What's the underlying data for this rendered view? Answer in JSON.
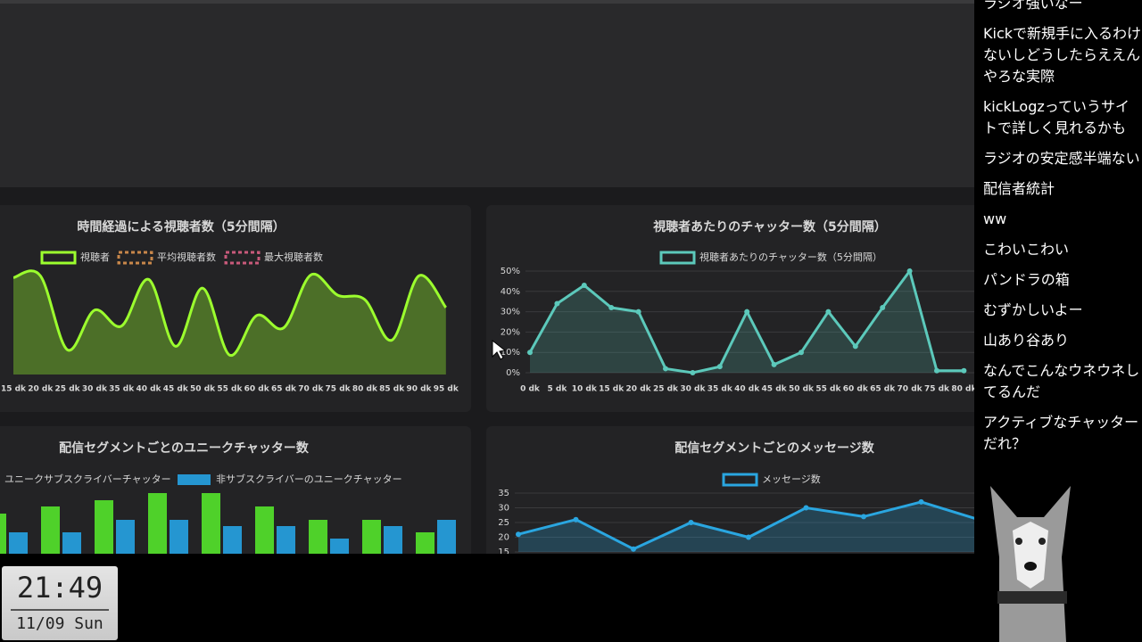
{
  "chart_data": [
    {
      "type": "line",
      "title": "時間経過による視聴者数（5分間隔）",
      "legend": [
        "視聴者",
        "平均視聴者数",
        "最大視聴者数"
      ],
      "categories": [
        "15 dk",
        "20 dk",
        "25 dk",
        "30 dk",
        "35 dk",
        "40 dk",
        "45 dk",
        "50 dk",
        "55 dk",
        "60 dk",
        "65 dk",
        "70 dk",
        "75 dk",
        "80 dk",
        "85 dk",
        "90 dk",
        "95 dk"
      ],
      "series": [
        {
          "name": "視聴者",
          "color": "#9cff2e",
          "values": [
            110,
            112,
            28,
            73,
            55,
            108,
            32,
            98,
            22,
            67,
            53,
            113,
            90,
            85,
            39,
            112,
            76
          ]
        }
      ]
    },
    {
      "type": "line",
      "title": "視聴者あたりのチャッター数（5分間隔）",
      "categories": [
        "0 dk",
        "5 dk",
        "10 dk",
        "15 dk",
        "20 dk",
        "25 dk",
        "30 dk",
        "35 dk",
        "40 dk",
        "45 dk",
        "50 dk",
        "55 dk",
        "60 dk",
        "65 dk",
        "70 dk",
        "75 dk",
        "80 dk"
      ],
      "series": [
        {
          "name": "視聴者あたりのチャッター数（5分間隔）",
          "color": "#5cc9bb",
          "values": [
            10,
            34,
            43,
            32,
            30,
            2,
            0,
            3,
            30,
            4,
            10,
            30,
            13,
            32,
            50,
            1,
            1
          ]
        }
      ],
      "ylim": [
        0,
        50
      ],
      "yticks": [
        {
          "value": 0,
          "label": "0%"
        },
        {
          "value": 10,
          "label": "10%"
        },
        {
          "value": 20,
          "label": "20%"
        },
        {
          "value": 30,
          "label": "30%"
        },
        {
          "value": 40,
          "label": "40%"
        },
        {
          "value": 50,
          "label": "50%"
        }
      ]
    },
    {
      "type": "bar",
      "title": "配信セグメントごとのユニークチャッター数",
      "series": [
        {
          "name": "ユニークサブスクライバーチャッター",
          "color": "#4fd12a",
          "values": [
            45,
            53,
            60,
            68,
            68,
            53,
            38,
            38,
            24
          ]
        },
        {
          "name": "非サブスクライバーのユニークチャッター",
          "color": "#2596d1",
          "values": [
            24,
            24,
            38,
            38,
            31,
            31,
            17,
            31,
            38
          ]
        }
      ]
    },
    {
      "type": "line",
      "title": "配信セグメントごとのメッセージ数",
      "series": [
        {
          "name": "メッセージ数",
          "color": "#2aa6e0",
          "values": [
            21,
            26,
            16,
            25,
            20,
            30,
            27,
            32,
            26
          ]
        }
      ],
      "ylim": [
        15,
        35
      ],
      "yticks": [
        15,
        20,
        25,
        30,
        35
      ]
    }
  ],
  "chat": [
    "ラジオ強いなー",
    "Kickで新規手に入るわけないしどうしたらええんやろな実際",
    "kickLogzっていうサイトで詳しく見れるかも",
    "ラジオの安定感半端ない",
    "配信者統計",
    "ww",
    "こわいこわい",
    "パンドラの箱",
    "むずかしいよー",
    "山あり谷あり",
    "なんでこんなウネウネしてるんだ",
    "アクティブなチャッターだれ？"
  ],
  "clock": {
    "time": "21:49",
    "date": "11/09 Sun"
  }
}
